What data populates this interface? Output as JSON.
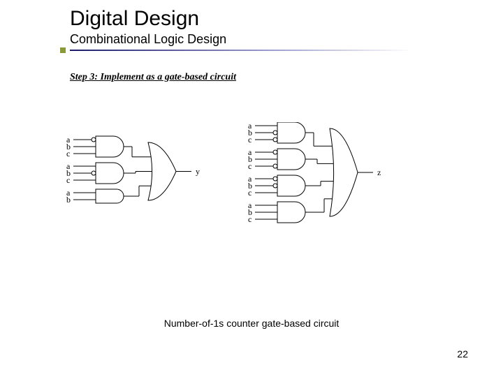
{
  "title": "Digital Design",
  "subtitle": "Combinational Logic Design",
  "step_heading": "Step 3: Implement as a gate-based circuit",
  "caption": "Number-of-1s counter gate-based circuit",
  "page_number": "22",
  "colors": {
    "background": "#ffffff",
    "text": "#000000",
    "underline_start": "#1a1a6a",
    "underline_end": "#a0a0d0",
    "accent": "#8a9a3a",
    "stroke": "#000000",
    "fill": "#ffffff"
  },
  "circuits": {
    "left": {
      "output": "y",
      "gates": [
        {
          "type": "AND",
          "inputs": [
            "a",
            "b",
            "c"
          ],
          "inverted": [
            true,
            false,
            false
          ]
        },
        {
          "type": "AND",
          "inputs": [
            "a",
            "b",
            "c"
          ],
          "inverted": [
            false,
            true,
            false
          ]
        },
        {
          "type": "AND",
          "inputs": [
            "a",
            "b"
          ],
          "inverted": [
            false,
            false
          ]
        }
      ],
      "combine": "OR"
    },
    "right": {
      "output": "z",
      "gates": [
        {
          "type": "AND",
          "inputs": [
            "a",
            "b",
            "c"
          ],
          "inverted": [
            false,
            true,
            true
          ]
        },
        {
          "type": "AND",
          "inputs": [
            "a",
            "b",
            "c"
          ],
          "inverted": [
            true,
            false,
            true
          ]
        },
        {
          "type": "AND",
          "inputs": [
            "a",
            "b",
            "c"
          ],
          "inverted": [
            true,
            true,
            false
          ]
        },
        {
          "type": "AND",
          "inputs": [
            "a",
            "b",
            "c"
          ],
          "inverted": [
            false,
            false,
            false
          ]
        }
      ],
      "combine": "OR"
    }
  },
  "style": {
    "title_fontsize": 30,
    "subtitle_fontsize": 18,
    "step_fontsize": 14,
    "caption_fontsize": 14,
    "label_fontsize": 12,
    "stroke_width": 1,
    "gate_width": 40,
    "gate_height_3": 30,
    "gate_height_2": 20,
    "bubble_radius": 3
  }
}
